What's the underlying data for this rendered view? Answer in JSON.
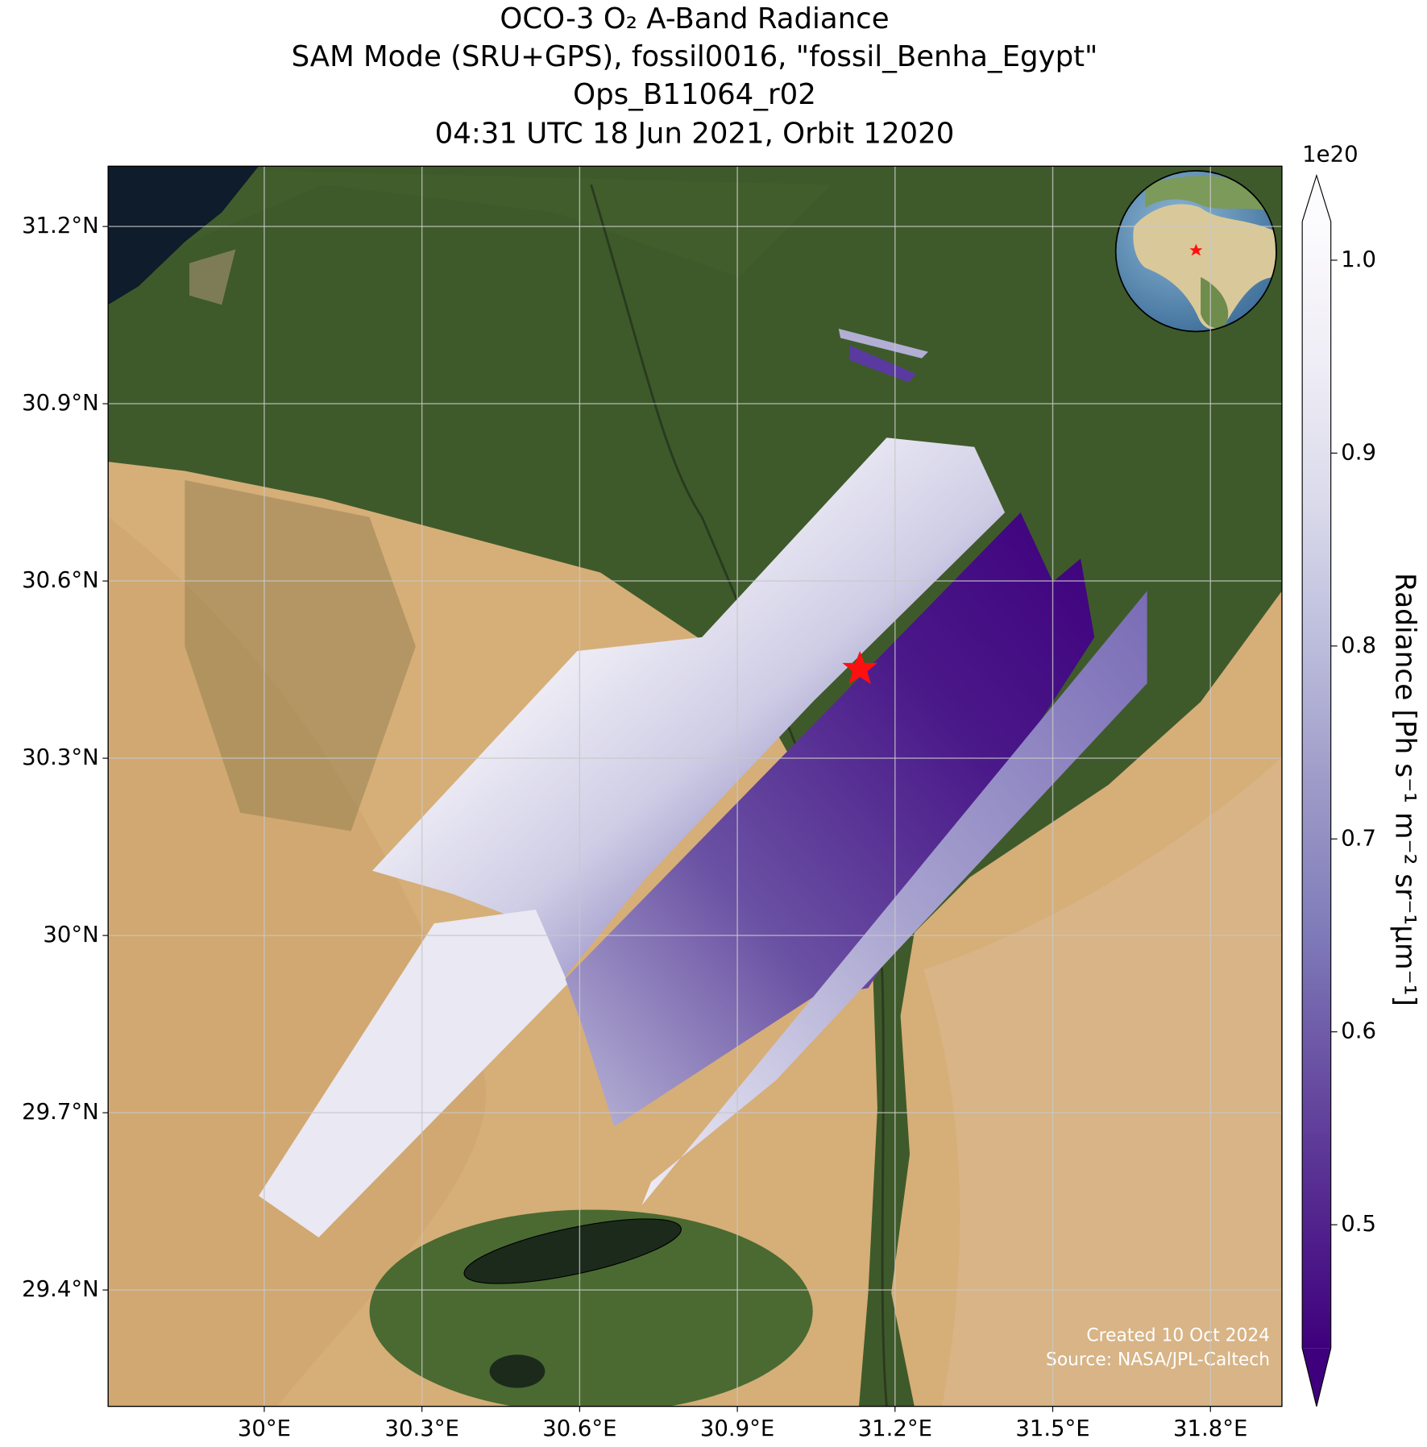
{
  "chart_data": {
    "type": "map",
    "title_lines": [
      "OCO-3 O₂ A-Band Radiance",
      "SAM Mode (SRU+GPS), fossil0016, \"fossil_Benha_Egypt\"",
      "Ops_B11064_r02",
      "04:31 UTC 18 Jun 2021, Orbit 12020"
    ],
    "xlim": [
      29.703,
      31.936
    ],
    "ylim": [
      29.203,
      31.302
    ],
    "xticks": [
      {
        "value": 30,
        "label": "30°E"
      },
      {
        "value": 30.3,
        "label": "30.3°E"
      },
      {
        "value": 30.6,
        "label": "30.6°E"
      },
      {
        "value": 30.9,
        "label": "30.9°E"
      },
      {
        "value": 31.2,
        "label": "31.2°E"
      },
      {
        "value": 31.5,
        "label": "31.5°E"
      },
      {
        "value": 31.8,
        "label": "31.8°E"
      }
    ],
    "yticks": [
      {
        "value": 29.4,
        "label": "29.4°N"
      },
      {
        "value": 29.7,
        "label": "29.7°N"
      },
      {
        "value": 30,
        "label": "30°N"
      },
      {
        "value": 30.3,
        "label": "30.3°N"
      },
      {
        "value": 30.6,
        "label": "30.6°N"
      },
      {
        "value": 30.9,
        "label": "30.9°N"
      },
      {
        "value": 31.2,
        "label": "31.2°N"
      }
    ],
    "grid": true,
    "colorbar": {
      "label": "Radiance [Ph s⁻¹ m⁻² sr⁻¹μm⁻¹]",
      "offset_label": "1e20",
      "lim": [
        0.436,
        1.02
      ],
      "ticks": [
        0.5,
        0.6,
        0.7,
        0.8,
        0.9,
        {
          "value": 1,
          "label": "1.0"
        }
      ],
      "colors": [
        "#3f007d",
        "#54278f",
        "#6a51a3",
        "#807dba",
        "#9e9ac8",
        "#bcbddc",
        "#dadaeb",
        "#efedf5",
        "#fcfbfd"
      ]
    },
    "credits": [
      "Created 10 Oct 2024",
      "Source: NASA/JPL-Caltech"
    ]
  }
}
